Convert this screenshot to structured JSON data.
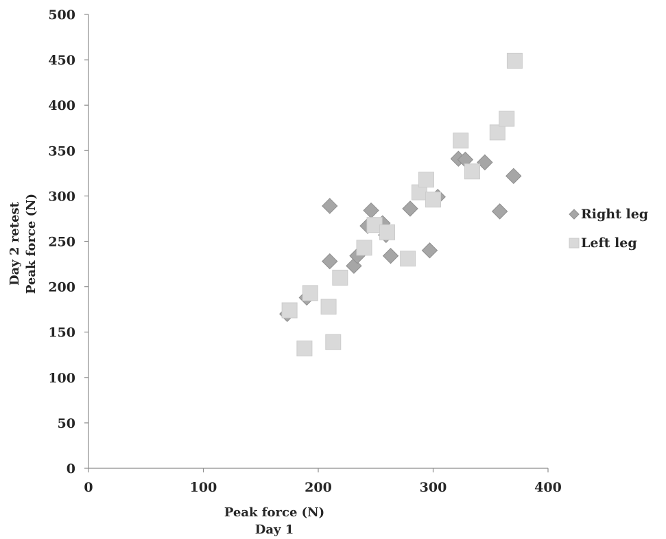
{
  "chart_data": {
    "type": "scatter",
    "title": "",
    "xlabel": [
      "Peak force (N)",
      "Day 1"
    ],
    "ylabel": [
      "Day 2 retest",
      "Peak force (N)"
    ],
    "xlim": [
      0,
      400
    ],
    "ylim": [
      0,
      500
    ],
    "x_ticks": [
      0,
      100,
      200,
      300,
      400
    ],
    "y_ticks": [
      0,
      50,
      100,
      150,
      200,
      250,
      300,
      350,
      400,
      450,
      500
    ],
    "grid": false,
    "legend": "right",
    "series": [
      {
        "name": "Right leg",
        "marker": "diamond",
        "color": "#a6a6a6",
        "points": [
          [
            173,
            170
          ],
          [
            190,
            188
          ],
          [
            210,
            289
          ],
          [
            210,
            228
          ],
          [
            231,
            223
          ],
          [
            234,
            234
          ],
          [
            243,
            267
          ],
          [
            246,
            284
          ],
          [
            256,
            270
          ],
          [
            259,
            257
          ],
          [
            263,
            234
          ],
          [
            280,
            286
          ],
          [
            297,
            240
          ],
          [
            304,
            299
          ],
          [
            322,
            341
          ],
          [
            328,
            340
          ],
          [
            345,
            337
          ],
          [
            358,
            283
          ],
          [
            370,
            322
          ]
        ]
      },
      {
        "name": "Left leg",
        "marker": "square",
        "color": "#d9d9d9",
        "points": [
          [
            175,
            174
          ],
          [
            188,
            132
          ],
          [
            193,
            193
          ],
          [
            209,
            178
          ],
          [
            213,
            139
          ],
          [
            219,
            210
          ],
          [
            240,
            243
          ],
          [
            249,
            268
          ],
          [
            260,
            260
          ],
          [
            278,
            231
          ],
          [
            288,
            304
          ],
          [
            294,
            318
          ],
          [
            300,
            296
          ],
          [
            324,
            361
          ],
          [
            334,
            327
          ],
          [
            356,
            370
          ],
          [
            364,
            385
          ],
          [
            371,
            449
          ]
        ]
      }
    ]
  }
}
